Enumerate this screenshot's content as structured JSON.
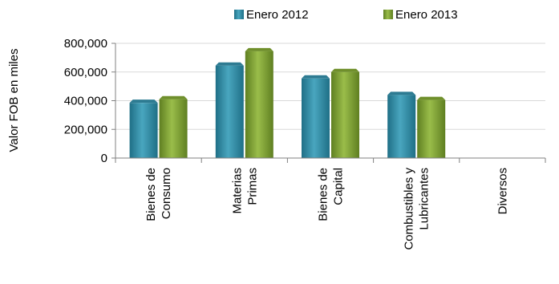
{
  "chart_data": {
    "type": "bar",
    "title": "",
    "xlabel": "",
    "ylabel": "Valor FOB en miles",
    "ylim": [
      0,
      800000
    ],
    "yticks": [
      "800,000",
      "600,000",
      "400,000",
      "200,000",
      "0"
    ],
    "categories": [
      [
        "Bienes de",
        "Consumo"
      ],
      [
        "Materias",
        "Primas"
      ],
      [
        "Bienes de",
        "Capital"
      ],
      [
        "Combustibles y",
        "Lubricantes"
      ],
      [
        "Diversos"
      ]
    ],
    "series": [
      {
        "name": "Enero 2012",
        "values": [
          385000,
          645000,
          555000,
          440000,
          0
        ]
      },
      {
        "name": "Enero 2013",
        "values": [
          410000,
          745000,
          600000,
          405000,
          0
        ]
      }
    ],
    "grid": true,
    "legend": "top",
    "colors": {
      "enero2012_front": "#3f95ad",
      "enero2012_top": "#2d7b92",
      "enero2013_front": "#8bab3d",
      "enero2013_top": "#6f8f2b",
      "gridline": "#d9d9d9",
      "axis": "#808080"
    }
  }
}
